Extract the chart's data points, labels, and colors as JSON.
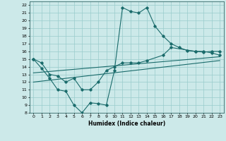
{
  "xlabel": "Humidex (Indice chaleur)",
  "bg_color": "#cce9e9",
  "grid_color": "#99cccc",
  "line_color": "#1a6b6b",
  "xlim": [
    -0.5,
    23.5
  ],
  "ylim": [
    8,
    22.5
  ],
  "xticks": [
    0,
    1,
    2,
    3,
    4,
    5,
    6,
    7,
    8,
    9,
    10,
    11,
    12,
    13,
    14,
    15,
    16,
    17,
    18,
    19,
    20,
    21,
    22,
    23
  ],
  "yticks": [
    8,
    9,
    10,
    11,
    12,
    13,
    14,
    15,
    16,
    17,
    18,
    19,
    20,
    21,
    22
  ],
  "line1_x": [
    0,
    1,
    2,
    3,
    4,
    5,
    6,
    7,
    8,
    9,
    10,
    11,
    12,
    13,
    14,
    15,
    16,
    17,
    18,
    19,
    20,
    21,
    22,
    23
  ],
  "line1_y": [
    15.0,
    13.8,
    12.5,
    11.0,
    10.8,
    9.0,
    8.0,
    9.3,
    9.2,
    9.0,
    13.5,
    21.7,
    21.2,
    21.0,
    21.7,
    19.3,
    18.0,
    17.0,
    16.5,
    16.1,
    16.0,
    16.0,
    15.8,
    15.5
  ],
  "line2_x": [
    0,
    1,
    2,
    3,
    4,
    5,
    6,
    7,
    8,
    9,
    10,
    11,
    12,
    13,
    14,
    16,
    17,
    20,
    21,
    22,
    23
  ],
  "line2_y": [
    15.0,
    14.5,
    13.0,
    12.8,
    12.0,
    12.5,
    11.0,
    11.0,
    12.0,
    13.5,
    14.0,
    14.5,
    14.5,
    14.5,
    14.8,
    15.5,
    16.5,
    16.0,
    15.9,
    16.0,
    16.0
  ],
  "line3_x": [
    0,
    23
  ],
  "line3_y": [
    13.2,
    15.3
  ],
  "line4_x": [
    0,
    23
  ],
  "line4_y": [
    12.0,
    14.8
  ]
}
